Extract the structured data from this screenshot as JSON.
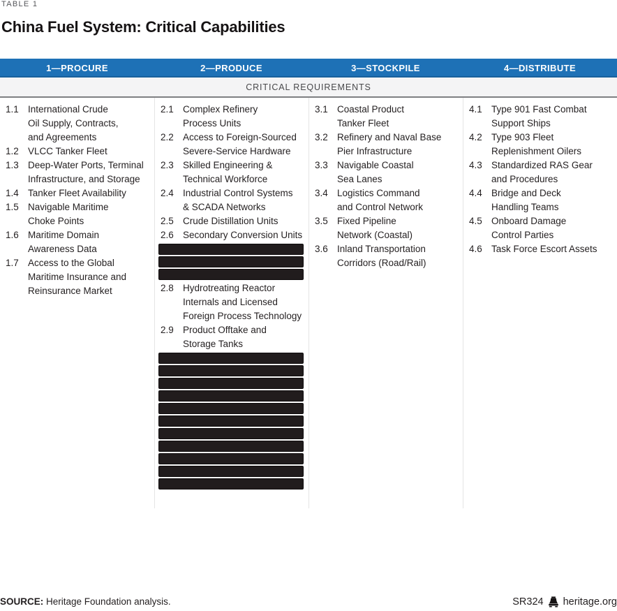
{
  "page": {
    "table_label": "TABLE 1",
    "title": "China Fuel System: Critical Capabilities",
    "subheader": "CRITICAL REQUIREMENTS",
    "footer": {
      "source_label": "SOURCE:",
      "source_text": " Heritage Foundation analysis.",
      "report_id": "SR324",
      "site": "heritage.org",
      "logo_icon": "heritage-bell-icon"
    },
    "colors": {
      "header_blue": "#1E71B6",
      "subheader_bg": "#F4F4F5",
      "subheader_border": "#7E7F82",
      "redaction_bar": "#211C1D",
      "column_divider": "#E4E4E4",
      "body_text": "#231F20",
      "muted_text": "#55565A"
    }
  },
  "columns": [
    {
      "header": "1—PROCURE",
      "items": [
        {
          "num": "1.1",
          "text": "International Crude\nOil Supply, Contracts,\nand Agreements"
        },
        {
          "num": "1.2",
          "text": "VLCC Tanker Fleet"
        },
        {
          "num": "1.3",
          "text": "Deep-Water Ports, Terminal\nInfrastructure, and Storage"
        },
        {
          "num": "1.4",
          "text": "Tanker Fleet Availability"
        },
        {
          "num": "1.5",
          "text": "Navigable Maritime\nChoke Points"
        },
        {
          "num": "1.6",
          "text": "Maritime Domain\nAwareness Data"
        },
        {
          "num": "1.7",
          "text": "Access to the Global\nMaritime Insurance and\nReinsurance Market"
        }
      ]
    },
    {
      "header": "2—PRODUCE",
      "items": [
        {
          "num": "2.1",
          "text": "Complex Refinery\nProcess Units"
        },
        {
          "num": "2.2",
          "text": "Access to Foreign-Sourced\nSevere-Service Hardware"
        },
        {
          "num": "2.3",
          "text": "Skilled Engineering &\nTechnical Workforce"
        },
        {
          "num": "2.4",
          "text": "Industrial Control Systems\n& SCADA Networks"
        },
        {
          "num": "2.5",
          "text": "Crude Distillation Units"
        },
        {
          "num": "2.6",
          "text": "Secondary Conversion Units"
        },
        {
          "redacted": true
        },
        {
          "redacted": true
        },
        {
          "redacted": true
        },
        {
          "num": "2.8",
          "text": "Hydrotreating Reactor\nInternals and Licensed\nForeign Process Technology"
        },
        {
          "num": "2.9",
          "text": "Product Offtake and\nStorage Tanks"
        },
        {
          "redacted": true
        },
        {
          "redacted": true
        },
        {
          "redacted": true
        },
        {
          "redacted": true
        },
        {
          "redacted": true
        },
        {
          "redacted": true
        },
        {
          "redacted": true
        },
        {
          "redacted": true
        },
        {
          "redacted": true
        },
        {
          "redacted": true
        },
        {
          "redacted": true
        }
      ]
    },
    {
      "header": "3—STOCKPILE",
      "items": [
        {
          "num": "3.1",
          "text": "Coastal Product\nTanker Fleet"
        },
        {
          "num": "3.2",
          "text": "Refinery and Naval Base\nPier Infrastructure"
        },
        {
          "num": "3.3",
          "text": "Navigable Coastal\nSea Lanes"
        },
        {
          "num": "3.4",
          "text": "Logistics Command\nand Control Network"
        },
        {
          "num": "3.5",
          "text": "Fixed Pipeline\nNetwork (Coastal)"
        },
        {
          "num": "3.6",
          "text": "Inland Transportation\nCorridors (Road/Rail)"
        }
      ]
    },
    {
      "header": "4—DISTRIBUTE",
      "items": [
        {
          "num": "4.1",
          "text": "Type 901 Fast Combat\nSupport Ships"
        },
        {
          "num": "4.2",
          "text": "Type 903 Fleet\nReplenishment Oilers"
        },
        {
          "num": "4.3",
          "text": "Standardized RAS Gear\nand Procedures"
        },
        {
          "num": "4.4",
          "text": "Bridge and Deck\nHandling Teams"
        },
        {
          "num": "4.5",
          "text": "Onboard Damage\nControl Parties"
        },
        {
          "num": "4.6",
          "text": "Task Force Escort Assets"
        }
      ]
    }
  ]
}
